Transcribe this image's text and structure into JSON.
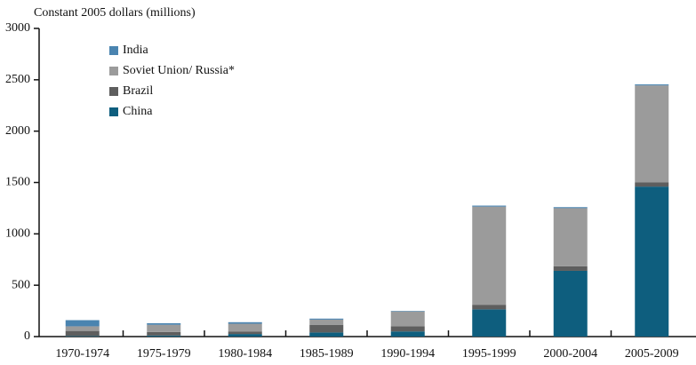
{
  "chart_data": {
    "type": "stacked_bar",
    "y_axis_label": "Constant 2005 dollars (millions)",
    "categories": [
      "1970-1974",
      "1975-1979",
      "1980-1984",
      "1985-1989",
      "1990-1994",
      "1995-1999",
      "2000-2004",
      "2005-2009"
    ],
    "series": [
      {
        "name": "China",
        "color": "#0e5e7e",
        "values": [
          5,
          10,
          25,
          40,
          50,
          265,
          640,
          1460
        ]
      },
      {
        "name": "Brazil",
        "color": "#5e5e5e",
        "values": [
          50,
          35,
          25,
          75,
          50,
          45,
          45,
          40
        ]
      },
      {
        "name": "Soviet Union/ Russia*",
        "color": "#9b9b9b",
        "values": [
          45,
          70,
          75,
          50,
          145,
          955,
          565,
          945
        ]
      },
      {
        "name": "India",
        "color": "#4a84b0",
        "values": [
          60,
          15,
          15,
          10,
          5,
          10,
          10,
          10
        ]
      }
    ],
    "ylim": [
      0,
      3000
    ],
    "yticks": [
      0,
      500,
      1000,
      1500,
      2000,
      2500,
      3000
    ]
  }
}
